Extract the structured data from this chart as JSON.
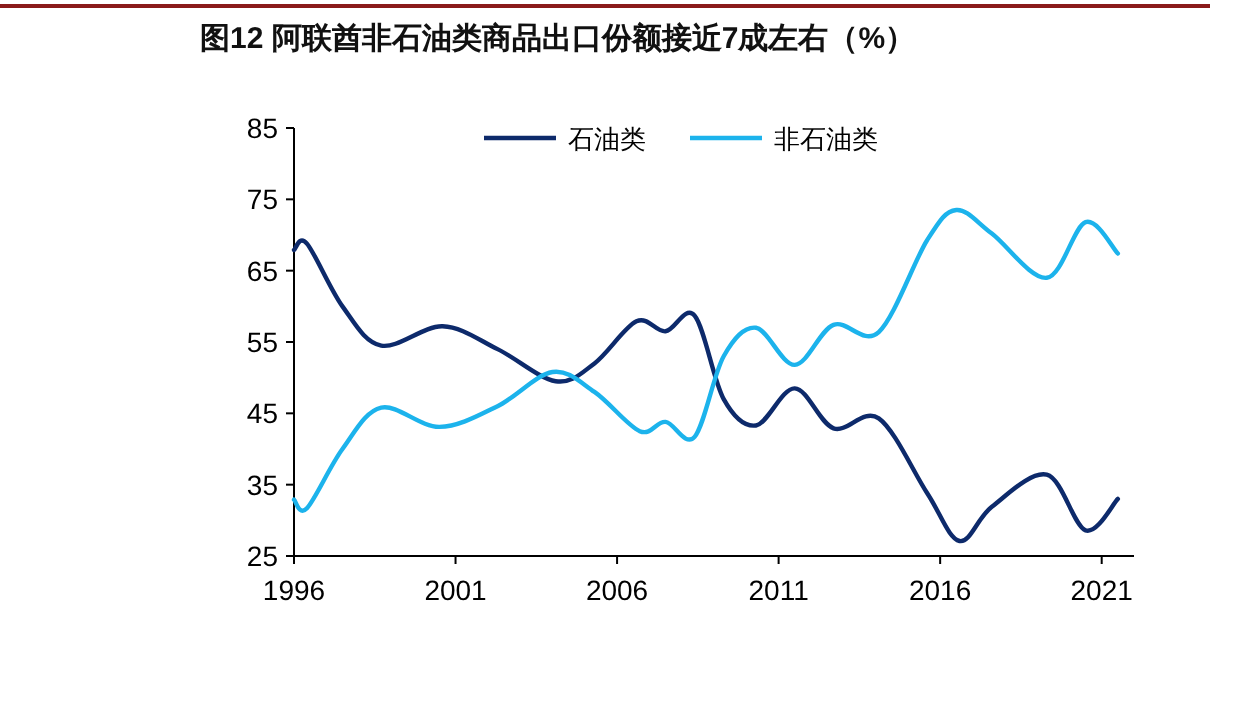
{
  "chart_data": {
    "type": "line",
    "title": "图12 阿联酋非石油类商品出口份额接近7成左右（%）",
    "series": [
      {
        "name": "石油类",
        "color": "#0d2a6b",
        "x": [
          1996,
          1996.4,
          1997.5,
          1998.7,
          2000.6,
          2002.3,
          2004.1,
          2005.3,
          2006.6,
          2007.5,
          2008.4,
          2009.3,
          2010.3,
          2011.5,
          2012.7,
          2014.1,
          2015.6,
          2016.6,
          2017.6,
          2019.3,
          2020.5,
          2021.5
        ],
        "values": [
          67.9,
          68.8,
          60,
          54.5,
          57.2,
          54,
          49.5,
          52,
          57.9,
          56.5,
          58.7,
          47,
          43.3,
          48.5,
          42.9,
          44.3,
          33.8,
          27.1,
          31.9,
          36.4,
          28.6,
          33.0
        ]
      },
      {
        "name": "非石油类",
        "color": "#1cb3ec",
        "x": [
          1996,
          1996.4,
          1997.5,
          1998.7,
          2000.5,
          2002.3,
          2004,
          2005.3,
          2006.7,
          2007.5,
          2008.4,
          2009.3,
          2010.3,
          2011.5,
          2012.7,
          2014.1,
          2015.6,
          2016.5,
          2017.6,
          2019.3,
          2020.5,
          2021.5
        ],
        "values": [
          32.9,
          31.7,
          40,
          45.8,
          43.1,
          46,
          50.8,
          48,
          42.5,
          43.8,
          41.7,
          53,
          57.0,
          51.8,
          57.4,
          56.4,
          69.3,
          73.5,
          70.2,
          64.0,
          71.8,
          67.4
        ]
      }
    ],
    "xlim": [
      1996,
      2022
    ],
    "xticks": [
      1996,
      2001,
      2006,
      2011,
      2016,
      2021
    ],
    "ylim": [
      25,
      85
    ],
    "yticks": [
      25,
      35,
      45,
      55,
      65,
      75,
      85
    ],
    "grid": false,
    "legend": "top",
    "marker": "none",
    "line_style": "solid"
  }
}
